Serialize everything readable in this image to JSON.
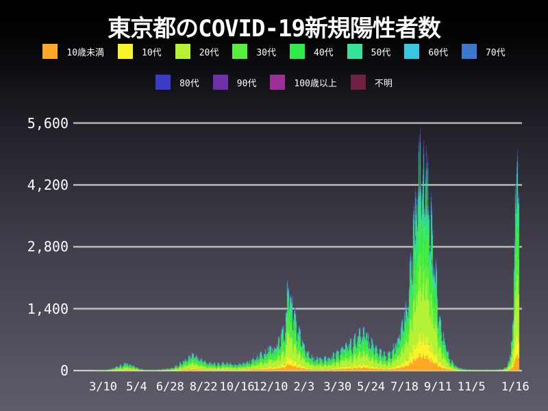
{
  "title": "東京都のCOVID-19新規陽性者数",
  "chart_data": {
    "type": "area",
    "subtype": "stacked-daily-cases",
    "title": "東京都のCOVID-19新規陽性者数",
    "xlabel": "",
    "ylabel": "",
    "ylim": [
      0,
      6200
    ],
    "y_ticks": [
      0,
      1400,
      2800,
      4200,
      5600
    ],
    "grid": true,
    "grid_color": "#ececec",
    "text_color": "#ffffff",
    "background_top": "#000000",
    "background_bottom": "#5f5c69",
    "legend_position": "top",
    "legend_row_split": [
      8,
      4
    ],
    "x_ticks": [
      {
        "day": 43,
        "label": "3/10"
      },
      {
        "day": 98,
        "label": "5/4"
      },
      {
        "day": 153,
        "label": "6/28"
      },
      {
        "day": 208,
        "label": "8/22"
      },
      {
        "day": 263,
        "label": "10/16"
      },
      {
        "day": 318,
        "label": "12/10"
      },
      {
        "day": 373,
        "label": "2/3"
      },
      {
        "day": 428,
        "label": "3/30"
      },
      {
        "day": 483,
        "label": "5/24"
      },
      {
        "day": 538,
        "label": "7/18"
      },
      {
        "day": 593,
        "label": "9/11"
      },
      {
        "day": 648,
        "label": "11/5"
      },
      {
        "day": 720,
        "label": "1/16"
      }
    ],
    "axis_day_min": -6,
    "axis_day_max": 731,
    "data_day_end": 725,
    "series": [
      {
        "name": "10歳未満",
        "color": "#FFA726",
        "share": 0.07
      },
      {
        "name": "10代",
        "color": "#F9F32B",
        "share": 0.09
      },
      {
        "name": "20代",
        "color": "#B5F235",
        "share": 0.27
      },
      {
        "name": "30代",
        "color": "#55EE3E",
        "share": 0.2
      },
      {
        "name": "40代",
        "color": "#30E84A",
        "share": 0.16
      },
      {
        "name": "50代",
        "color": "#37E39C",
        "share": 0.1
      },
      {
        "name": "60代",
        "color": "#3AC6DE",
        "share": 0.05
      },
      {
        "name": "70代",
        "color": "#3C78CE",
        "share": 0.03
      },
      {
        "name": "80代",
        "color": "#3C3BC6",
        "share": 0.015
      },
      {
        "name": "90代",
        "color": "#7030AC",
        "share": 0.007
      },
      {
        "name": "100歳以上",
        "color": "#9E2F96",
        "share": 0.002
      },
      {
        "name": "不明",
        "color": "#6E2143",
        "share": 0.006
      }
    ],
    "daily_total_envelope": [
      [
        0,
        0
      ],
      [
        10,
        1
      ],
      [
        19,
        2
      ],
      [
        34,
        8
      ],
      [
        48,
        20
      ],
      [
        55,
        40
      ],
      [
        62,
        70
      ],
      [
        70,
        120
      ],
      [
        76,
        150
      ],
      [
        81,
        170
      ],
      [
        88,
        130
      ],
      [
        95,
        95
      ],
      [
        102,
        50
      ],
      [
        109,
        22
      ],
      [
        119,
        12
      ],
      [
        128,
        14
      ],
      [
        135,
        25
      ],
      [
        142,
        35
      ],
      [
        149,
        48
      ],
      [
        156,
        65
      ],
      [
        163,
        120
      ],
      [
        170,
        180
      ],
      [
        177,
        250
      ],
      [
        183,
        320
      ],
      [
        187,
        380
      ],
      [
        194,
        330
      ],
      [
        201,
        280
      ],
      [
        208,
        220
      ],
      [
        218,
        180
      ],
      [
        232,
        170
      ],
      [
        248,
        175
      ],
      [
        262,
        160
      ],
      [
        272,
        165
      ],
      [
        279,
        190
      ],
      [
        286,
        240
      ],
      [
        293,
        310
      ],
      [
        300,
        380
      ],
      [
        309,
        440
      ],
      [
        316,
        500
      ],
      [
        323,
        560
      ],
      [
        329,
        650
      ],
      [
        335,
        800
      ],
      [
        340,
        1000
      ],
      [
        344,
        1500
      ],
      [
        346,
        2150
      ],
      [
        348,
        2000
      ],
      [
        351,
        1700
      ],
      [
        355,
        1400
      ],
      [
        360,
        1100
      ],
      [
        366,
        820
      ],
      [
        371,
        580
      ],
      [
        378,
        420
      ],
      [
        385,
        340
      ],
      [
        392,
        300
      ],
      [
        399,
        280
      ],
      [
        406,
        290
      ],
      [
        413,
        320
      ],
      [
        420,
        360
      ],
      [
        430,
        450
      ],
      [
        437,
        520
      ],
      [
        444,
        600
      ],
      [
        451,
        680
      ],
      [
        458,
        780
      ],
      [
        464,
        880
      ],
      [
        467,
        950
      ],
      [
        471,
        880
      ],
      [
        476,
        800
      ],
      [
        481,
        720
      ],
      [
        486,
        620
      ],
      [
        491,
        520
      ],
      [
        496,
        460
      ],
      [
        501,
        420
      ],
      [
        508,
        390
      ],
      [
        514,
        400
      ],
      [
        521,
        580
      ],
      [
        528,
        760
      ],
      [
        535,
        1100
      ],
      [
        541,
        1450
      ],
      [
        546,
        2000
      ],
      [
        549,
        2700
      ],
      [
        553,
        3300
      ],
      [
        557,
        3900
      ],
      [
        560,
        4400
      ],
      [
        564,
        5000
      ],
      [
        567,
        4850
      ],
      [
        570,
        4650
      ],
      [
        574,
        4400
      ],
      [
        577,
        4100
      ],
      [
        581,
        3500
      ],
      [
        584,
        2900
      ],
      [
        588,
        2400
      ],
      [
        591,
        1900
      ],
      [
        595,
        1450
      ],
      [
        598,
        1100
      ],
      [
        602,
        800
      ],
      [
        605,
        600
      ],
      [
        609,
        420
      ],
      [
        612,
        300
      ],
      [
        616,
        220
      ],
      [
        619,
        160
      ],
      [
        623,
        110
      ],
      [
        626,
        75
      ],
      [
        630,
        55
      ],
      [
        633,
        45
      ],
      [
        637,
        34
      ],
      [
        640,
        28
      ],
      [
        647,
        23
      ],
      [
        655,
        20
      ],
      [
        663,
        19
      ],
      [
        671,
        18
      ],
      [
        680,
        20
      ],
      [
        688,
        23
      ],
      [
        694,
        30
      ],
      [
        698,
        38
      ],
      [
        701,
        50
      ],
      [
        704,
        80
      ],
      [
        707,
        160
      ],
      [
        710,
        300
      ],
      [
        712,
        480
      ],
      [
        714,
        750
      ],
      [
        716,
        1300
      ],
      [
        718,
        2600
      ],
      [
        720,
        3900
      ],
      [
        722,
        4300
      ],
      [
        725,
        4400
      ]
    ],
    "notable_peaks": [
      {
        "approx_date": "2021-01-07",
        "approx_value": 2520
      },
      {
        "approx_date": "2021-08-13",
        "approx_value": 5770
      },
      {
        "approx_date": "2022-01-15",
        "approx_value": 4600
      }
    ]
  }
}
